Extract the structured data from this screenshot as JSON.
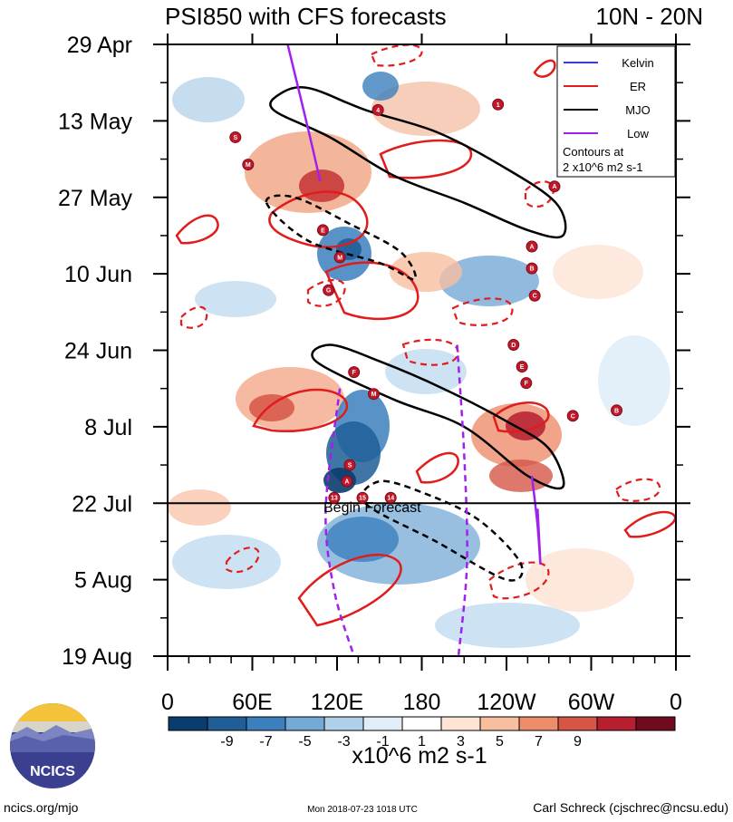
{
  "chart_data": {
    "type": "heatmap",
    "title": "PSI850 with CFS forecasts",
    "region": "10N - 20N",
    "xlabel": "",
    "ylabel": "",
    "x_ticks": [
      "0",
      "60E",
      "120E",
      "180",
      "120W",
      "60W",
      "0"
    ],
    "x_tick_degrees": [
      0,
      60,
      120,
      180,
      240,
      300,
      360
    ],
    "xlim": [
      0,
      360
    ],
    "y_ticks": [
      "29 Apr",
      "13 May",
      "27 May",
      "10 Jun",
      "24 Jun",
      "8 Jul",
      "22 Jul",
      "5 Aug",
      "19 Aug"
    ],
    "y_tick_days": [
      0,
      14,
      28,
      42,
      56,
      70,
      84,
      98,
      112
    ],
    "ylim_days": [
      0,
      112
    ],
    "forecast_start_day": 84,
    "forecast_label": "Begin Forecast",
    "colorbar": {
      "ticks": [
        "-9",
        "-7",
        "-5",
        "-3",
        "-1",
        "1",
        "3",
        "5",
        "7",
        "9"
      ],
      "colors": [
        "#0b3c6e",
        "#1f5e97",
        "#3b7fbd",
        "#76aad6",
        "#b0d0ea",
        "#e1eef8",
        "#ffffff",
        "#fde4d5",
        "#f8bea0",
        "#ee8d6b",
        "#d65547",
        "#b51f30",
        "#6e0b1e"
      ],
      "unit": "x10^6 m2 s-1"
    },
    "legend": {
      "entries": [
        {
          "label": "Kelvin",
          "color": "#3b3bd6",
          "style": "solid"
        },
        {
          "label": "ER",
          "color": "#e01c1c",
          "style": "solid"
        },
        {
          "label": "MJO",
          "color": "#000000",
          "style": "solid"
        },
        {
          "label": "Low",
          "color": "#a020f0",
          "style": "solid"
        }
      ],
      "note_line1": "Contours at",
      "note_line2": "2 x10^6 m2 s-1",
      "placement": "top-right"
    },
    "mjo_contours": [
      {
        "sign": "positive",
        "points": [
          [
            75,
            12
          ],
          [
            115,
            17
          ],
          [
            160,
            24
          ],
          [
            210,
            29
          ],
          [
            255,
            34
          ],
          [
            280,
            35
          ],
          [
            275,
            29
          ],
          [
            235,
            22
          ],
          [
            190,
            16
          ],
          [
            140,
            12
          ],
          [
            100,
            8
          ],
          [
            80,
            9
          ]
        ]
      },
      {
        "sign": "positive",
        "points": [
          [
            105,
            58
          ],
          [
            160,
            65
          ],
          [
            210,
            70
          ],
          [
            255,
            79
          ],
          [
            280,
            81
          ],
          [
            270,
            74
          ],
          [
            240,
            69
          ],
          [
            195,
            63
          ],
          [
            150,
            58
          ],
          [
            115,
            55
          ]
        ]
      },
      {
        "sign": "negative",
        "points": [
          [
            140,
            84
          ],
          [
            190,
            91
          ],
          [
            240,
            98
          ],
          [
            250,
            95
          ],
          [
            220,
            87
          ],
          [
            180,
            82
          ],
          [
            150,
            80
          ]
        ]
      },
      {
        "sign": "negative",
        "points": [
          [
            70,
            29
          ],
          [
            100,
            36
          ],
          [
            150,
            40
          ],
          [
            175,
            43
          ],
          [
            165,
            38
          ],
          [
            130,
            33
          ],
          [
            90,
            28
          ]
        ]
      }
    ],
    "low_contours": [
      {
        "sign": "positive",
        "points": [
          [
            85,
            0
          ],
          [
            100,
            16
          ],
          [
            108,
            25
          ]
        ]
      },
      {
        "sign": "positive",
        "points": [
          [
            258,
            79
          ],
          [
            262,
            88
          ],
          [
            264,
            95
          ],
          [
            262,
            85
          ]
        ]
      },
      {
        "sign": "negative",
        "points": [
          [
            205,
            55
          ],
          [
            210,
            75
          ],
          [
            212,
            95
          ],
          [
            206,
            112
          ]
        ]
      },
      {
        "sign": "negative",
        "points": [
          [
            122,
            63
          ],
          [
            112,
            85
          ],
          [
            118,
            100
          ],
          [
            132,
            112
          ]
        ]
      }
    ],
    "storms": [
      {
        "label": "S",
        "lon": 48,
        "day": 17
      },
      {
        "label": "M",
        "lon": 57,
        "day": 22
      },
      {
        "label": "4",
        "lon": 149,
        "day": 12
      },
      {
        "label": "1",
        "lon": 234,
        "day": 11
      },
      {
        "label": "A",
        "lon": 274,
        "day": 26
      },
      {
        "label": "E",
        "lon": 110,
        "day": 34
      },
      {
        "label": "M",
        "lon": 122,
        "day": 39
      },
      {
        "label": "A",
        "lon": 258,
        "day": 37
      },
      {
        "label": "B",
        "lon": 258,
        "day": 41
      },
      {
        "label": "C",
        "lon": 260,
        "day": 46
      },
      {
        "label": "G",
        "lon": 114,
        "day": 45
      },
      {
        "label": "D",
        "lon": 245,
        "day": 55
      },
      {
        "label": "E",
        "lon": 251,
        "day": 59
      },
      {
        "label": "F",
        "lon": 254,
        "day": 62
      },
      {
        "label": "F",
        "lon": 132,
        "day": 60
      },
      {
        "label": "M",
        "lon": 146,
        "day": 64
      },
      {
        "label": "C",
        "lon": 287,
        "day": 68
      },
      {
        "label": "B",
        "lon": 318,
        "day": 67
      },
      {
        "label": "S",
        "lon": 129,
        "day": 77
      },
      {
        "label": "A",
        "lon": 127,
        "day": 80
      },
      {
        "label": "13",
        "lon": 118,
        "day": 83
      },
      {
        "label": "15",
        "lon": 138,
        "day": 83
      },
      {
        "label": "14",
        "lon": 158,
        "day": 83
      }
    ]
  },
  "logo": {
    "text": "NCICS"
  },
  "footer": {
    "left": "ncics.org/mjo",
    "center": "Mon 2018-07-23 1018 UTC",
    "right": "Carl Schreck (cjschrec@ncsu.edu)"
  }
}
